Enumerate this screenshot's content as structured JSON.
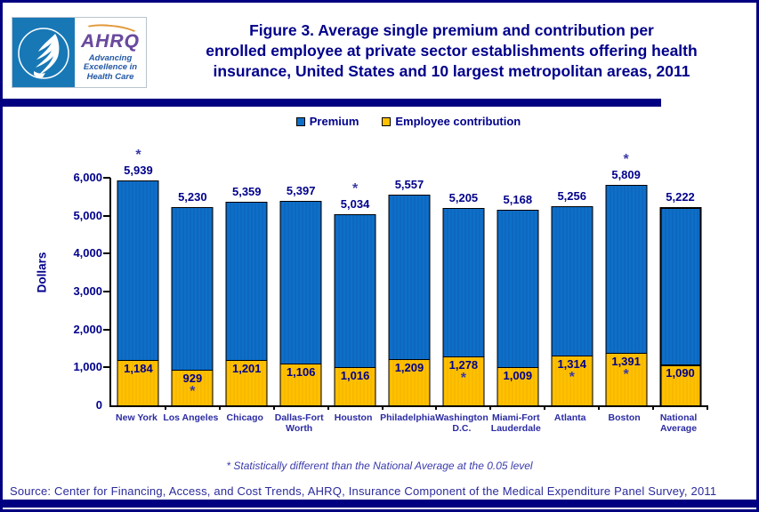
{
  "header": {
    "logo": {
      "org": "AHRQ",
      "tagline_lines": [
        "Advancing",
        "Excellence in",
        "Health Care"
      ]
    },
    "title_lines": [
      "Figure 3. Average single premium and contribution per",
      "enrolled employee at private sector establishments offering health",
      "insurance, United States and 10 largest metropolitan areas, 2011"
    ]
  },
  "chart_data": {
    "type": "bar",
    "variant": "overlay",
    "ylabel": "Dollars",
    "ylim": [
      0,
      6000
    ],
    "yticks": [
      0,
      1000,
      2000,
      3000,
      4000,
      5000,
      6000
    ],
    "ytick_labels": [
      "0",
      "1,000",
      "2,000",
      "3,000",
      "4,000",
      "5,000",
      "6,000"
    ],
    "grid": false,
    "legend_position": "top-center",
    "categories": [
      "New York",
      "Los Angeles",
      "Chicago",
      "Dallas-Fort Worth",
      "Houston",
      "Philadelphia",
      "Washington D.C.",
      "Miami-Fort Lauderdale",
      "Atlanta",
      "Boston",
      "National Average"
    ],
    "category_label_lines": [
      [
        "New York"
      ],
      [
        "Los Angeles"
      ],
      [
        "Chicago"
      ],
      [
        "Dallas-Fort",
        "Worth"
      ],
      [
        "Houston"
      ],
      [
        "Philadelphia"
      ],
      [
        "Washington",
        "D.C."
      ],
      [
        "Miami-Fort",
        "Lauderdale"
      ],
      [
        "Atlanta"
      ],
      [
        "Boston"
      ],
      [
        "National",
        "Average"
      ]
    ],
    "series": [
      {
        "name": "Premium",
        "color": "#0e6fc8",
        "values": [
          5939,
          5230,
          5359,
          5397,
          5034,
          5557,
          5205,
          5168,
          5256,
          5809,
          5222
        ],
        "labels": [
          "5,939",
          "5,230",
          "5,359",
          "5,397",
          "5,034",
          "5,557",
          "5,205",
          "5,168",
          "5,256",
          "5,809",
          "5,222"
        ],
        "starred": [
          true,
          false,
          false,
          false,
          true,
          false,
          false,
          false,
          false,
          true,
          false
        ]
      },
      {
        "name": "Employee contribution",
        "color": "#ffc000",
        "values": [
          1184,
          929,
          1201,
          1106,
          1016,
          1209,
          1278,
          1009,
          1314,
          1391,
          1090
        ],
        "labels": [
          "1,184",
          "929",
          "1,201",
          "1,106",
          "1,016",
          "1,209",
          "1,278",
          "1,009",
          "1,314",
          "1,391",
          "1,090"
        ],
        "starred": [
          false,
          true,
          false,
          false,
          false,
          false,
          true,
          false,
          true,
          true,
          false
        ]
      }
    ],
    "highlight_category": "National Average",
    "star_symbol": "*"
  },
  "footnote": "* Statistically different than the National Average at the 0.05 level",
  "source": "Source: Center for Financing, Access, and Cost Trends, AHRQ, Insurance Component of the Medical Expenditure Panel Survey, 2011",
  "colors": {
    "navy": "#00008b",
    "divider": "#000080",
    "bar_blue": "#0e6fc8",
    "bar_yellow": "#ffc000"
  }
}
